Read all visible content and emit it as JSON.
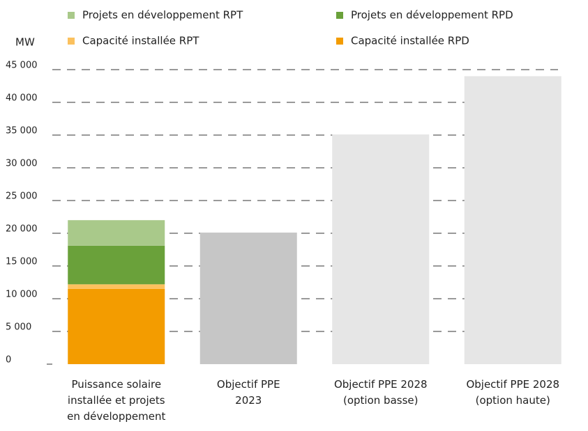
{
  "chart_data": {
    "type": "stacked_bar",
    "y_label": "MW",
    "categories": [
      "Puissance solaire\ninstallée et projets\nen développement",
      "Objectif PPE\n2023",
      "Objectif PPE 2028\n(option basse)",
      "Objectif PPE 2028\n(option haute)"
    ],
    "series": [
      {
        "name": "Capacité installée RPD",
        "color": "#f39c00",
        "values": [
          11500,
          null,
          null,
          null
        ]
      },
      {
        "name": "Capacité installée RPT",
        "color": "#fbc15e",
        "values": [
          700,
          null,
          null,
          null
        ]
      },
      {
        "name": "Projets en développement RPD",
        "color": "#6aa13a",
        "values": [
          5900,
          null,
          null,
          null
        ]
      },
      {
        "name": "Projets en développement RPT",
        "color": "#a9c98a",
        "values": [
          3900,
          null,
          null,
          null
        ]
      }
    ],
    "target_values": [
      null,
      20100,
      35100,
      44000
    ],
    "target_colors": [
      null,
      "#c6c6c6",
      "#e6e6e6",
      "#e6e6e6"
    ],
    "ylim": [
      0,
      45000
    ],
    "yticks": [
      0,
      {
        "value": 5000,
        "label": "5 000"
      },
      {
        "value": 10000,
        "label": "10 000"
      },
      {
        "value": 15000,
        "label": "15 000"
      },
      {
        "value": 20000,
        "label": "20 000"
      },
      {
        "value": 25000,
        "label": "25 000"
      },
      {
        "value": 30000,
        "label": "30 000"
      },
      {
        "value": 35000,
        "label": "35 000"
      },
      {
        "value": 40000,
        "label": "40 000"
      },
      {
        "value": 45000,
        "label": "45 000"
      }
    ],
    "grid": true
  }
}
